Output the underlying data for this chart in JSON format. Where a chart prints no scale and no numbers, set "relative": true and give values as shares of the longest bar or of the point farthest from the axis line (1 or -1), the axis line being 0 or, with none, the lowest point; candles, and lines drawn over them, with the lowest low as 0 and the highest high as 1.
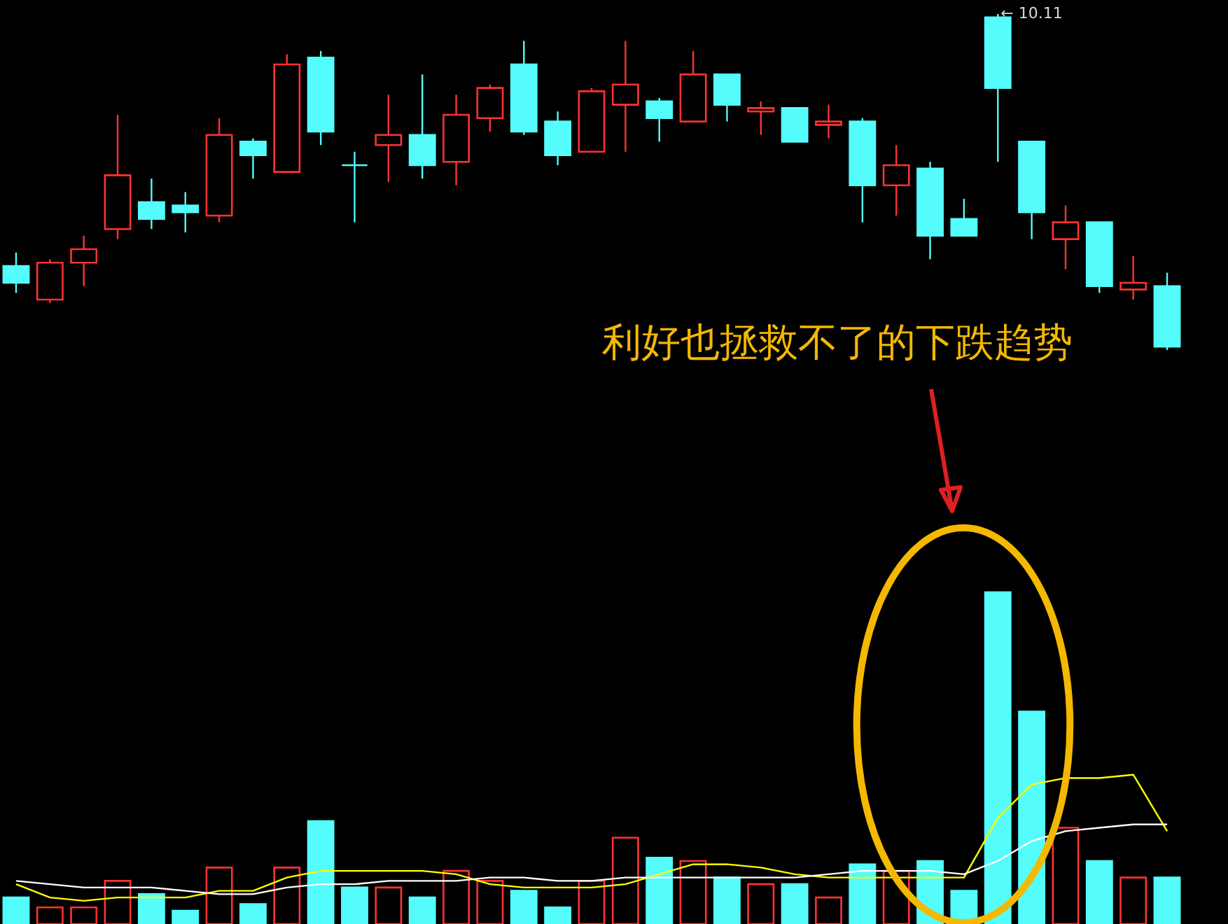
{
  "chart_data": [
    {
      "type": "candlestick",
      "relative": true,
      "categories": [
        null,
        null,
        null,
        null,
        null,
        null,
        null,
        null,
        null,
        null,
        null,
        null,
        null,
        null,
        null,
        null,
        null,
        null,
        null,
        null,
        null,
        null,
        null,
        null,
        null,
        null,
        null,
        null,
        null,
        null,
        null,
        null,
        null,
        null,
        null
      ],
      "ohlc": [
        [
          0.25,
          0.29,
          0.17,
          0.2
        ],
        [
          0.15,
          0.27,
          0.14,
          0.26
        ],
        [
          0.26,
          0.34,
          0.19,
          0.3
        ],
        [
          0.36,
          0.7,
          0.33,
          0.52
        ],
        [
          0.44,
          0.51,
          0.36,
          0.39
        ],
        [
          0.43,
          0.47,
          0.35,
          0.41
        ],
        [
          0.4,
          0.69,
          0.38,
          0.64
        ],
        [
          0.62,
          0.63,
          0.51,
          0.58
        ],
        [
          0.53,
          0.88,
          0.53,
          0.85
        ],
        [
          0.87,
          0.89,
          0.61,
          0.65
        ],
        [
          0.55,
          0.59,
          0.38,
          0.55
        ],
        [
          0.61,
          0.76,
          0.5,
          0.64
        ],
        [
          0.64,
          0.82,
          0.51,
          0.55
        ],
        [
          0.56,
          0.76,
          0.49,
          0.7
        ],
        [
          0.69,
          0.79,
          0.65,
          0.78
        ],
        [
          0.85,
          0.92,
          0.64,
          0.65
        ],
        [
          0.68,
          0.71,
          0.55,
          0.58
        ],
        [
          0.59,
          0.78,
          0.59,
          0.77
        ],
        [
          0.73,
          0.92,
          0.59,
          0.79
        ],
        [
          0.74,
          0.75,
          0.62,
          0.69
        ],
        [
          0.68,
          0.89,
          0.68,
          0.82
        ],
        [
          0.82,
          0.82,
          0.68,
          0.73
        ],
        [
          0.71,
          0.74,
          0.64,
          0.72
        ],
        [
          0.72,
          0.72,
          0.62,
          0.62
        ],
        [
          0.67,
          0.73,
          0.63,
          0.68
        ],
        [
          0.68,
          0.69,
          0.38,
          0.49
        ],
        [
          0.49,
          0.61,
          0.4,
          0.55
        ],
        [
          0.54,
          0.56,
          0.27,
          0.34
        ],
        [
          0.39,
          0.45,
          0.34,
          0.34
        ],
        [
          0.99,
          1.0,
          0.56,
          0.78
        ],
        [
          0.62,
          0.62,
          0.33,
          0.41
        ],
        [
          0.33,
          0.43,
          0.24,
          0.38
        ],
        [
          0.38,
          0.38,
          0.17,
          0.19
        ],
        [
          0.18,
          0.28,
          0.15,
          0.2
        ],
        [
          0.19,
          0.23,
          0.0,
          0.01
        ]
      ],
      "colors": [
        "#54fcfc",
        "#ff3232",
        "#ff3232",
        "#ff3232",
        "#54fcfc",
        "#54fcfc",
        "#ff3232",
        "#54fcfc",
        "#ff3232",
        "#54fcfc",
        "#54fcfc",
        "#ff3232",
        "#54fcfc",
        "#ff3232",
        "#ff3232",
        "#54fcfc",
        "#54fcfc",
        "#ff3232",
        "#ff3232",
        "#54fcfc",
        "#ff3232",
        "#54fcfc",
        "#ff3232",
        "#54fcfc",
        "#ff3232",
        "#54fcfc",
        "#ff3232",
        "#54fcfc",
        "#54fcfc",
        "#54fcfc",
        "#54fcfc",
        "#ff3232",
        "#54fcfc",
        "#ff3232",
        "#54fcfc"
      ],
      "annotations": [
        "← 10.11",
        "利好也拯救不了的下跌趋势"
      ]
    },
    {
      "type": "bar",
      "relative": true,
      "categories": [
        null,
        null,
        null,
        null,
        null,
        null,
        null,
        null,
        null,
        null,
        null,
        null,
        null,
        null,
        null,
        null,
        null,
        null,
        null,
        null,
        null,
        null,
        null,
        null,
        null,
        null,
        null,
        null,
        null,
        null,
        null,
        null,
        null,
        null,
        null
      ],
      "series": [
        {
          "type": "bar",
          "colors": [
            "#54fcfc",
            "#ff3232",
            "#ff3232",
            "#ff3232",
            "#54fcfc",
            "#54fcfc",
            "#ff3232",
            "#54fcfc",
            "#ff3232",
            "#54fcfc",
            "#54fcfc",
            "#ff3232",
            "#54fcfc",
            "#ff3232",
            "#ff3232",
            "#54fcfc",
            "#54fcfc",
            "#ff3232",
            "#ff3232",
            "#54fcfc",
            "#ff3232",
            "#54fcfc",
            "#ff3232",
            "#54fcfc",
            "#ff3232",
            "#54fcfc",
            "#ff3232",
            "#54fcfc",
            "#54fcfc",
            "#54fcfc",
            "#54fcfc",
            "#ff3232",
            "#54fcfc",
            "#ff3232",
            "#54fcfc"
          ],
          "values": [
            0.08,
            0.05,
            0.05,
            0.13,
            0.09,
            0.04,
            0.17,
            0.06,
            0.17,
            0.31,
            0.11,
            0.11,
            0.08,
            0.16,
            0.13,
            0.1,
            0.05,
            0.13,
            0.26,
            0.2,
            0.19,
            0.14,
            0.12,
            0.12,
            0.08,
            0.18,
            0.16,
            0.19,
            0.1,
            1.0,
            0.64,
            0.29,
            0.19,
            0.14,
            0.14
          ]
        },
        {
          "type": "line",
          "color": "#ffff00",
          "values": [
            0.12,
            0.08,
            0.07,
            0.08,
            0.08,
            0.08,
            0.1,
            0.1,
            0.14,
            0.16,
            0.16,
            0.16,
            0.16,
            0.15,
            0.12,
            0.11,
            0.11,
            0.11,
            0.12,
            0.15,
            0.18,
            0.18,
            0.17,
            0.15,
            0.14,
            0.14,
            0.14,
            0.14,
            0.14,
            0.32,
            0.42,
            0.44,
            0.44,
            0.45,
            0.28
          ]
        },
        {
          "type": "line",
          "color": "#ffffff",
          "values": [
            0.13,
            0.12,
            0.11,
            0.11,
            0.11,
            0.1,
            0.09,
            0.09,
            0.11,
            0.12,
            0.12,
            0.13,
            0.13,
            0.13,
            0.14,
            0.14,
            0.13,
            0.13,
            0.14,
            0.14,
            0.14,
            0.14,
            0.14,
            0.14,
            0.15,
            0.16,
            0.16,
            0.16,
            0.15,
            0.19,
            0.25,
            0.28,
            0.29,
            0.3,
            0.3
          ]
        }
      ]
    }
  ]
}
